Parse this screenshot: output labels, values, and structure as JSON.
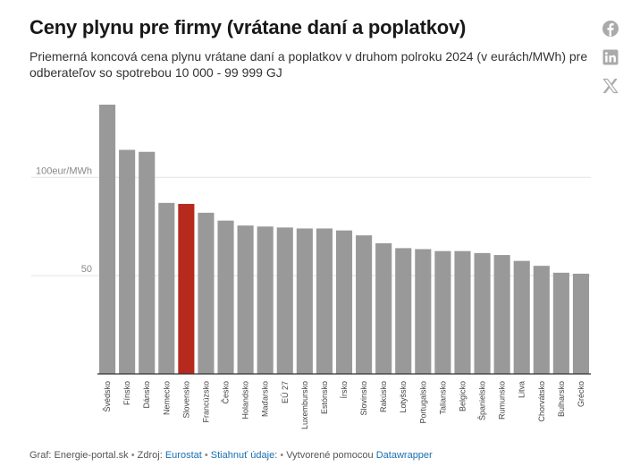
{
  "header": {
    "title": "Ceny plynu pre firmy (vrátane daní a poplatkov)",
    "subtitle": "Priemerná koncová cena plynu vrátane daní a poplatkov v druhom polroku 2024 (v eurách/MWh) pre odberateľov so spotrebou 10 000 - 99 999 GJ"
  },
  "share": {
    "facebook_icon": "facebook-icon",
    "linkedin_icon": "linkedin-icon",
    "x_icon": "x-icon"
  },
  "colors": {
    "bar": "#999999",
    "highlight": "#b52a1d",
    "grid": "#e2e2e2",
    "axis": "#333333",
    "link": "#1a6fb0"
  },
  "chart_data": {
    "type": "bar",
    "orientation": "vertical",
    "categories": [
      "Švédsko",
      "Fínsko",
      "Dánsko",
      "Nemecko",
      "Slovensko",
      "Francúzsko",
      "Česko",
      "Holandsko",
      "Maďarsko",
      "EÚ 27",
      "Luxembursko",
      "Estónsko",
      "Írsko",
      "Slovinsko",
      "Rakúsko",
      "Lotyšsko",
      "Portugalsko",
      "Taliansko",
      "Belgicko",
      "Španielsko",
      "Rumunsko",
      "Litva",
      "Chorvátsko",
      "Bulharsko",
      "Grécko"
    ],
    "values": [
      137,
      114,
      113,
      87,
      86.5,
      82,
      78,
      75.5,
      75,
      74.5,
      74,
      74,
      73,
      70.5,
      66.5,
      64,
      63.5,
      62.5,
      62.5,
      61.5,
      60.5,
      57.5,
      55,
      51.5,
      51
    ],
    "highlight": "Slovensko",
    "y_ticks": [
      {
        "value": 50,
        "label": "50"
      },
      {
        "value": 100,
        "label": "100eur/MWh"
      }
    ],
    "ylim": [
      0,
      137
    ],
    "grid": true
  },
  "footer": {
    "graph_label": "Graf: Energie-portal.sk",
    "sep1": "•",
    "source_label": "Zdroj:",
    "source_link": "Eurostat",
    "sep2": "•",
    "download_link": "Stiahnuť údaje",
    "colon": ":",
    "sep3": "•",
    "created_label": "Vytvorené pomocou",
    "created_link": "Datawrapper"
  }
}
